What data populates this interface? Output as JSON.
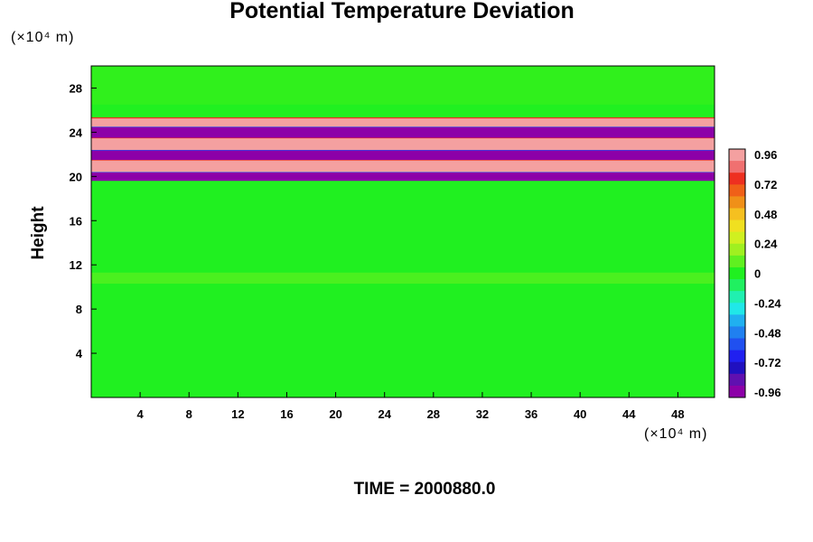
{
  "chart_data": {
    "type": "heatmap",
    "title": "Potential Temperature Deviation",
    "ylabel": "Height",
    "xunit": "(×10⁴ m)",
    "yunit": "(×10⁴ m)",
    "xlim": [
      0,
      51
    ],
    "ylim": [
      0,
      30
    ],
    "xticks": [
      4,
      8,
      12,
      16,
      20,
      24,
      28,
      32,
      36,
      40,
      44,
      48
    ],
    "yticks": [
      4,
      8,
      12,
      16,
      20,
      24,
      28
    ],
    "colorbar": {
      "min": -1.0,
      "max": 1.0,
      "ticks": [
        "0.96",
        "0.72",
        "0.48",
        "0.24",
        "0",
        "-0.24",
        "-0.48",
        "-0.72",
        "-0.96"
      ],
      "colors": [
        "#f4a0a0",
        "#f07070",
        "#ee3020",
        "#f06018",
        "#f09018",
        "#f5c020",
        "#f0e020",
        "#d0f020",
        "#a0f020",
        "#60f020",
        "#20f020",
        "#20f060",
        "#20f0b0",
        "#20e8e8",
        "#20b0f0",
        "#2080f0",
        "#2050f0",
        "#2020f0",
        "#2010c0",
        "#6010b0",
        "#8c00a8"
      ]
    },
    "bands": [
      {
        "y0": 19.6,
        "y1": 20.4,
        "value": -0.96,
        "note": "purple"
      },
      {
        "y0": 20.4,
        "y1": 21.5,
        "value": 0.96,
        "note": "pink"
      },
      {
        "y0": 21.5,
        "y1": 22.4,
        "value": -0.96,
        "note": "purple"
      },
      {
        "y0": 22.4,
        "y1": 23.5,
        "value": 0.96,
        "note": "pink"
      },
      {
        "y0": 23.5,
        "y1": 24.5,
        "value": -0.96,
        "note": "purple"
      },
      {
        "y0": 24.5,
        "y1": 25.3,
        "value": 0.96,
        "note": "pink"
      }
    ],
    "background_value": 0.0
  },
  "footer": {
    "time_label": "TIME = 2000880.0"
  }
}
